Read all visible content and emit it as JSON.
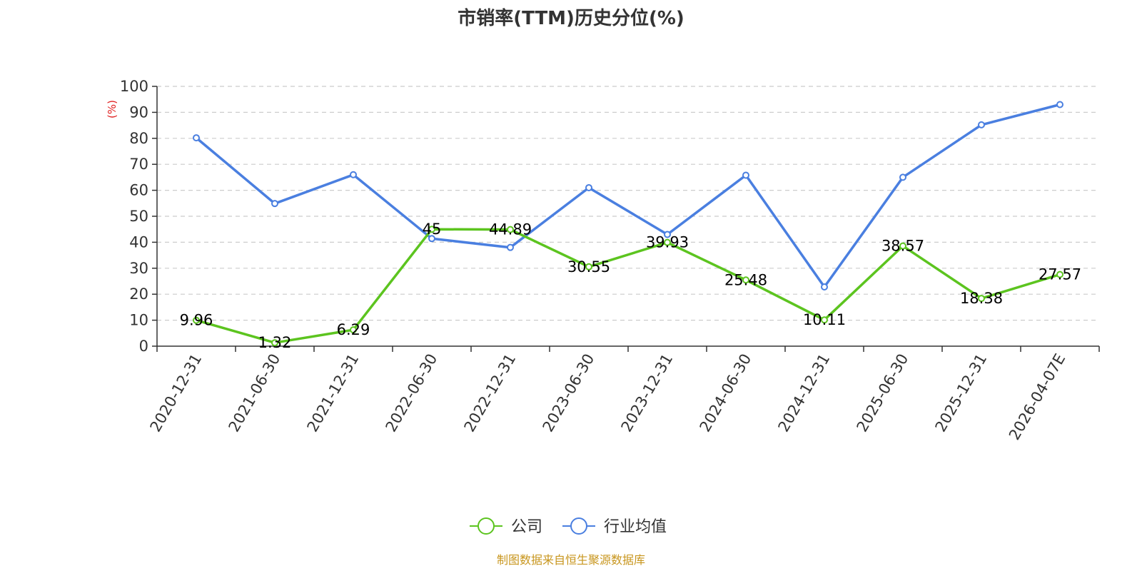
{
  "chart_data": {
    "type": "line",
    "title": "市销率(TTM)历史分位(%)",
    "ylabel": "(%)",
    "ylim": [
      0,
      100
    ],
    "yticks": [
      0,
      10,
      20,
      30,
      40,
      50,
      60,
      70,
      80,
      90,
      100
    ],
    "grid": true,
    "legend_placement": "bottom-center",
    "categories": [
      "2020-12-31",
      "2021-06-30",
      "2021-12-31",
      "2022-06-30",
      "2022-12-31",
      "2023-06-30",
      "2023-12-31",
      "2024-06-30",
      "2024-12-31",
      "2025-06-30",
      "2025-12-31",
      "2026-04-07E"
    ],
    "series": [
      {
        "name": "公司",
        "color": "#5cc41f",
        "values": [
          9.96,
          1.32,
          6.29,
          45,
          44.89,
          30.55,
          39.93,
          25.48,
          10.11,
          38.57,
          18.38,
          27.57
        ],
        "labels": [
          "9.96",
          "1.32",
          "6.29",
          "45",
          "44.89",
          "30.55",
          "39.93",
          "25.48",
          "10.11",
          "38.57",
          "18.38",
          "27.57"
        ]
      },
      {
        "name": "行业均值",
        "color": "#4a7fe0",
        "values": [
          80.2,
          54.9,
          66.0,
          41.4,
          38.0,
          61.0,
          43.0,
          65.8,
          22.8,
          65.0,
          85.2,
          93.0
        ]
      }
    ]
  },
  "source": "制图数据来自恒生聚源数据库",
  "colors": {
    "ylabel": "#e02020",
    "source": "#c8961e",
    "grid": "#cccccc",
    "axis": "#333333"
  }
}
